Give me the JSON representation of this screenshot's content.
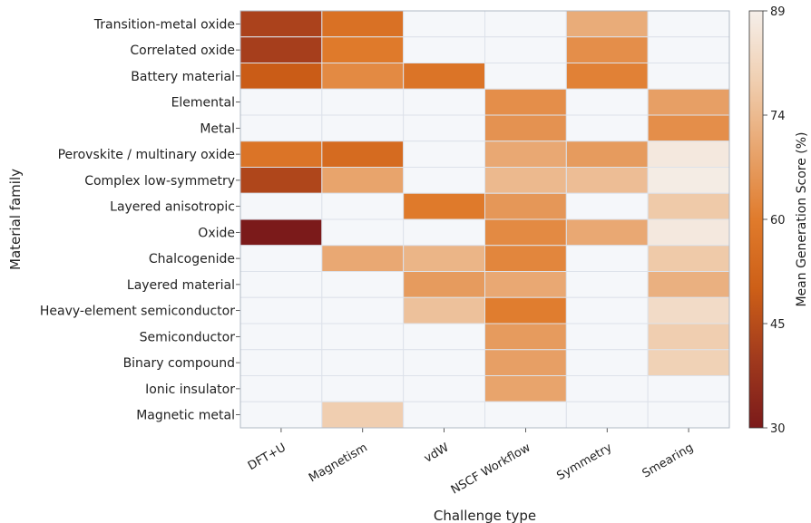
{
  "chart_data": {
    "type": "heatmap",
    "xlabel": "Challenge type",
    "ylabel": "Material family",
    "colorbar_label": "Mean Generation Score (%)",
    "colorbar_ticks": [
      "89",
      "74",
      "60",
      "45",
      "30"
    ],
    "colorbar_range": [
      30,
      89
    ],
    "columns": [
      "DFT+U",
      "Magnetism",
      "vdW",
      "NSCF Workflow",
      "Symmetry",
      "Smearing"
    ],
    "rows": [
      "Transition-metal oxide",
      "Correlated oxide",
      "Battery material",
      "Elemental",
      "Metal",
      "Perovskite / multinary oxide",
      "Complex low-symmetry",
      "Layered anisotropic",
      "Oxide",
      "Chalcogenide",
      "Layered material",
      "Heavy-element semiconductor",
      "Semiconductor",
      "Binary compound",
      "Ionic insulator",
      "Magnetic metal"
    ],
    "values": [
      [
        42,
        56,
        null,
        null,
        71,
        null
      ],
      [
        41,
        59,
        null,
        null,
        64,
        null
      ],
      [
        49,
        63,
        57,
        null,
        61,
        null
      ],
      [
        null,
        null,
        null,
        64,
        null,
        68
      ],
      [
        null,
        null,
        null,
        65,
        null,
        64
      ],
      [
        57,
        54,
        null,
        70,
        67,
        87
      ],
      [
        43,
        69,
        null,
        74,
        75,
        88
      ],
      [
        null,
        null,
        59,
        66,
        null,
        78
      ],
      [
        30,
        null,
        null,
        63,
        70,
        87
      ],
      [
        null,
        70,
        73,
        62,
        null,
        78
      ],
      [
        null,
        null,
        67,
        70,
        null,
        72
      ],
      [
        null,
        null,
        76,
        60,
        null,
        83
      ],
      [
        null,
        null,
        null,
        67,
        null,
        79
      ],
      [
        null,
        null,
        null,
        68,
        null,
        80
      ],
      [
        null,
        null,
        null,
        69,
        null,
        null
      ],
      [
        null,
        79,
        null,
        null,
        null,
        null
      ]
    ],
    "empty_cell_color": "#f5f7fa",
    "colormap": [
      "#7b1a1a",
      "#a13a1d",
      "#cd5f17",
      "#e07b2c",
      "#e8a56e",
      "#f0cfb1",
      "#f5efea"
    ],
    "grid": true
  }
}
